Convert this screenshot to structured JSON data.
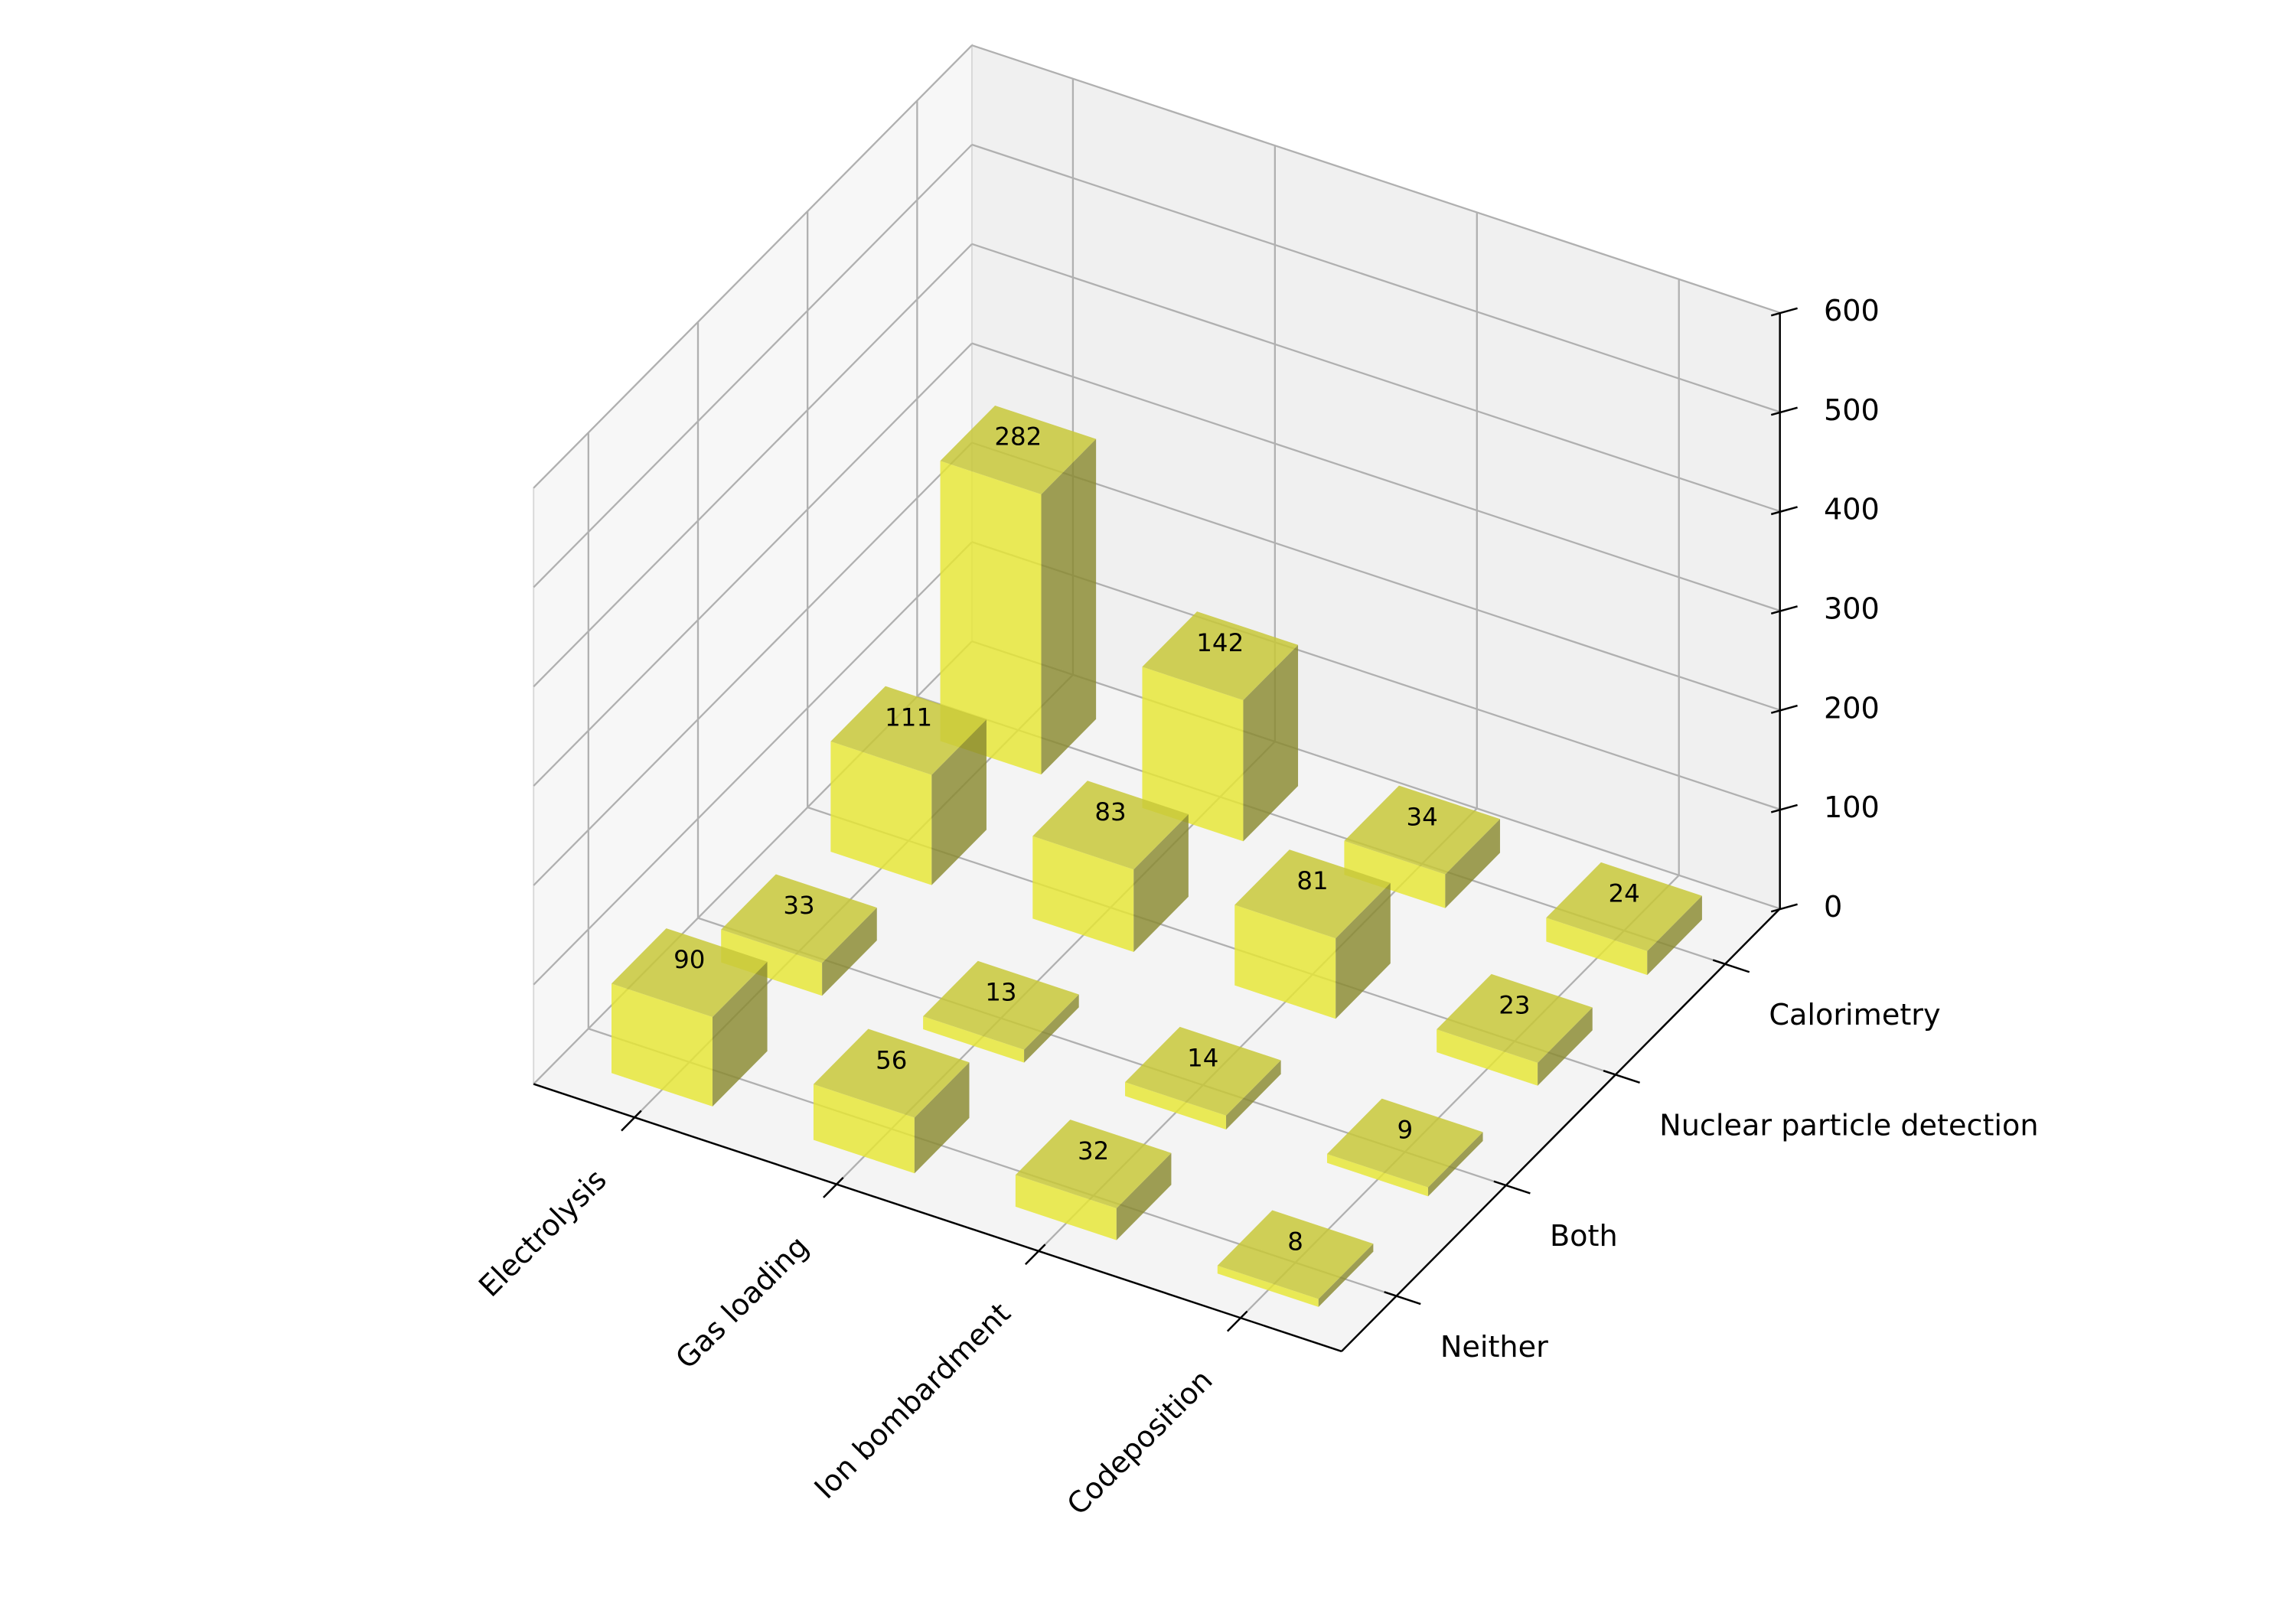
{
  "chart_data": {
    "type": "bar3d",
    "categories": [
      "Electrolysis",
      "Gas loading",
      "Ion bombardment",
      "Codeposition"
    ],
    "y_categories": [
      "Neither",
      "Both",
      "Nuclear particle detection",
      "Calorimetry"
    ],
    "values": [
      [
        90,
        33,
        111,
        282
      ],
      [
        56,
        13,
        83,
        142
      ],
      [
        32,
        14,
        81,
        34
      ],
      [
        8,
        9,
        23,
        24
      ]
    ],
    "color": "#e6e633",
    "zlim": [
      0,
      600
    ],
    "zticks": [
      0,
      100,
      200,
      300,
      400,
      500,
      600
    ],
    "grid": true
  }
}
